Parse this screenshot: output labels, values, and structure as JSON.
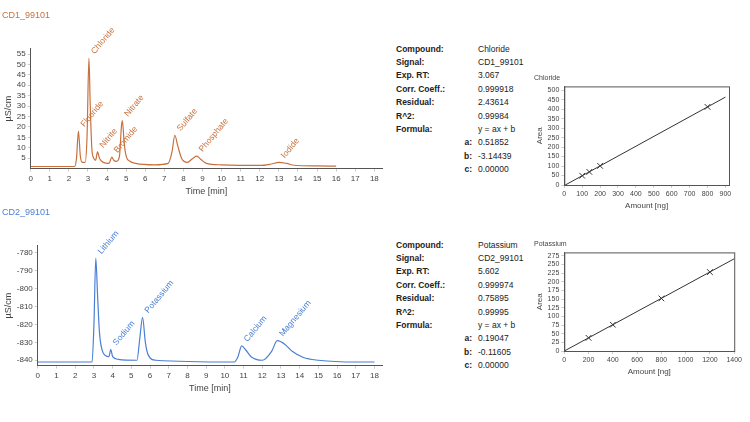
{
  "chart_data": [
    {
      "type": "line",
      "title": "CD1_99101",
      "x_label": "Time [min]",
      "y_label": "µS/cm",
      "color": "#c8703c",
      "x": [
        0,
        2.3,
        2.4,
        2.5,
        2.6,
        2.7,
        2.85,
        2.95,
        3.05,
        3.12,
        3.2,
        3.3,
        3.4,
        3.5,
        3.6,
        3.8,
        4.1,
        4.25,
        4.35,
        4.5,
        4.65,
        4.75,
        4.8,
        4.9,
        5.0,
        5.2,
        5.5,
        6.5,
        7.2,
        7.4,
        7.55,
        7.7,
        7.9,
        8.2,
        8.5,
        8.7,
        8.9,
        9.2,
        10,
        12,
        12.6,
        13.0,
        13.4,
        13.8,
        15,
        16
      ],
      "values": [
        1,
        1,
        5,
        18,
        6,
        3,
        3,
        15,
        53,
        30,
        10,
        5,
        4,
        8,
        5,
        3,
        2.5,
        5.5,
        4,
        3.5,
        6,
        20,
        23,
        12,
        6,
        3.5,
        2.5,
        1.8,
        2.5,
        8,
        16,
        11,
        5,
        3,
        5,
        6,
        4.5,
        2.5,
        1.8,
        1.5,
        2.2,
        3,
        2.5,
        1.6,
        1.3,
        1.2
      ],
      "xlim": [
        0,
        18.4
      ],
      "xticks": [
        0,
        1,
        2,
        3,
        4,
        5,
        6,
        7,
        8,
        9,
        10,
        11,
        12,
        13,
        14,
        15,
        16,
        17,
        18
      ],
      "ylim": [
        0,
        57.5
      ],
      "yticks": [
        5,
        10,
        15,
        20,
        25,
        30,
        35,
        40,
        45,
        50,
        55
      ],
      "grid": false,
      "annotations": [
        {
          "text": "Fluoride",
          "x": 2.5,
          "y": 18
        },
        {
          "text": "Chloride",
          "x": 3.05,
          "y": 53
        },
        {
          "text": "Nitrite",
          "x": 3.5,
          "y": 8
        },
        {
          "text": "Bromide",
          "x": 4.25,
          "y": 5.5
        },
        {
          "text": "Nitrate",
          "x": 4.8,
          "y": 23
        },
        {
          "text": "Sulfate",
          "x": 7.55,
          "y": 16
        },
        {
          "text": "Phosphate",
          "x": 8.7,
          "y": 6
        },
        {
          "text": "Iodide",
          "x": 13.0,
          "y": 3
        }
      ]
    },
    {
      "type": "scatter",
      "title": "Chloride",
      "x_label": "Amount [ng]",
      "y_label": "Area",
      "color": "#333333",
      "marker": "x",
      "x": [
        100,
        140,
        200,
        800
      ],
      "values": [
        49,
        69,
        101,
        412
      ],
      "fit_line": {
        "x": [
          0,
          900
        ],
        "values": [
          -3,
          463.5
        ]
      },
      "xlim": [
        0,
        920
      ],
      "xticks": [
        0,
        100,
        200,
        300,
        400,
        500,
        600,
        700,
        800,
        900
      ],
      "ylim": [
        0,
        520
      ],
      "yticks": [
        0,
        50,
        100,
        150,
        200,
        250,
        300,
        350,
        400,
        450,
        500
      ],
      "grid": false
    },
    {
      "type": "line",
      "title": "CD2_99101",
      "x_label": "Time [min]",
      "y_label": "µS/cm",
      "color": "#4a7fd4",
      "x": [
        0,
        2.9,
        3.0,
        3.1,
        3.2,
        3.3,
        3.5,
        3.8,
        3.9,
        4.0,
        4.3,
        5.3,
        5.45,
        5.6,
        5.75,
        5.9,
        6.3,
        10.5,
        10.7,
        10.9,
        11.1,
        11.4,
        12.0,
        12.5,
        12.8,
        13.2,
        13.6,
        14.2,
        15,
        17,
        18
      ],
      "values": [
        -841,
        -841,
        -820,
        -783,
        -805,
        -825,
        -836,
        -838,
        -834,
        -838,
        -839.5,
        -840,
        -828,
        -816,
        -830,
        -837,
        -840,
        -841,
        -838,
        -832,
        -834,
        -838,
        -840,
        -835,
        -829,
        -831,
        -835,
        -838.5,
        -840,
        -841,
        -841
      ],
      "xlim": [
        0,
        18.4
      ],
      "xticks": [
        0,
        1,
        2,
        3,
        4,
        5,
        6,
        7,
        8,
        9,
        10,
        11,
        12,
        13,
        14,
        15,
        16,
        17,
        18
      ],
      "ylim": [
        -843,
        -776
      ],
      "yticks": [
        -840,
        -830,
        -820,
        -810,
        -800,
        -790,
        -780
      ],
      "grid": false,
      "annotations": [
        {
          "text": "Lithium",
          "x": 3.1,
          "y": -783
        },
        {
          "text": "Sodium",
          "x": 3.9,
          "y": -834
        },
        {
          "text": "Potassium",
          "x": 5.6,
          "y": -816
        },
        {
          "text": "Calcium",
          "x": 10.9,
          "y": -832
        },
        {
          "text": "Magnesium",
          "x": 12.8,
          "y": -829
        }
      ]
    },
    {
      "type": "scatter",
      "title": "Potassium",
      "x_label": "Amount [ng]",
      "y_label": "Area",
      "color": "#333333",
      "marker": "x",
      "x": [
        200,
        400,
        800,
        1200
      ],
      "values": [
        38,
        76,
        152,
        228
      ],
      "fit_line": {
        "x": [
          0,
          1400
        ],
        "values": [
          -0.1,
          266.5
        ]
      },
      "xlim": [
        0,
        1400
      ],
      "xticks": [
        0,
        200,
        400,
        600,
        800,
        1000,
        1200,
        1400
      ],
      "ylim": [
        0,
        285
      ],
      "yticks": [
        0,
        25,
        50,
        75,
        100,
        125,
        150,
        175,
        200,
        225,
        250,
        275
      ],
      "grid": false
    }
  ],
  "info_panels": [
    {
      "rows": [
        [
          "Compound:",
          "Chloride"
        ],
        [
          "Signal:",
          "CD1_99101"
        ],
        [
          "Exp. RT:",
          "3.067"
        ],
        [
          "Corr. Coeff.:",
          "0.999918"
        ],
        [
          "Residual:",
          "2.43614"
        ],
        [
          "R^2:",
          "0.99984"
        ],
        [
          "Formula:",
          "y = ax + b"
        ]
      ],
      "coefficients": [
        [
          "a:",
          "0.51852"
        ],
        [
          "b:",
          "-3.14439"
        ],
        [
          "c:",
          "0.00000"
        ]
      ]
    },
    {
      "rows": [
        [
          "Compound:",
          "Potassium"
        ],
        [
          "Signal:",
          "CD2_99101"
        ],
        [
          "Exp. RT:",
          "5.602"
        ],
        [
          "Corr. Coeff.:",
          "0.999974"
        ],
        [
          "Residual:",
          "0.75895"
        ],
        [
          "R^2:",
          "0.99995"
        ],
        [
          "Formula:",
          "y = ax + b"
        ]
      ],
      "coefficients": [
        [
          "a:",
          "0.19047"
        ],
        [
          "b:",
          "-0.11605"
        ],
        [
          "c:",
          "0.00000"
        ]
      ]
    }
  ]
}
